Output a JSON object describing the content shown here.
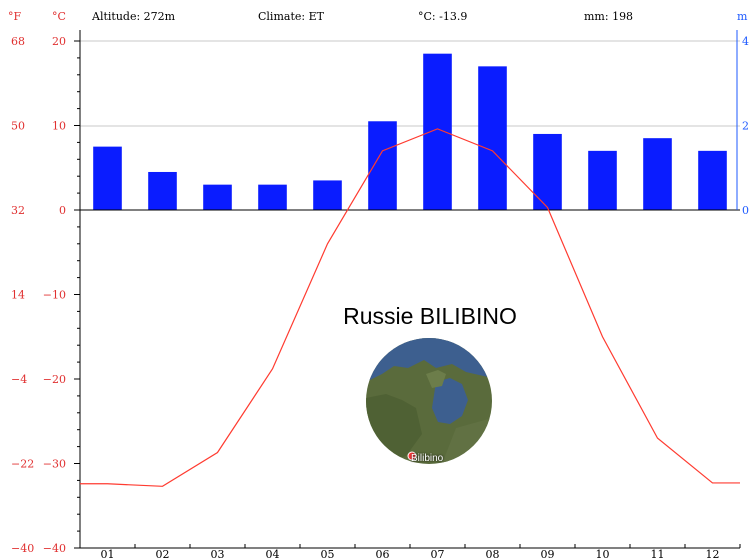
{
  "header": {
    "altitude": "Altitude: 272m",
    "climate": "Climate: ET",
    "avg_temp": "°C: -13.9",
    "precip": "mm: 198"
  },
  "units": {
    "fahrenheit": "°F",
    "celsius": "°C",
    "mm": "m"
  },
  "station": {
    "title": "Russie BILIBINO",
    "map_label": "Bilibino"
  },
  "colors": {
    "precip_bars": "#0a1cff",
    "temperature_line": "#ff3b30",
    "axis_text_temp": "#e03030",
    "axis_text_mm": "#1e5aff"
  },
  "chart_data": {
    "type": "bar",
    "categories": [
      "01",
      "02",
      "03",
      "04",
      "05",
      "06",
      "07",
      "08",
      "09",
      "10",
      "11",
      "12"
    ],
    "series": [
      {
        "name": "mm",
        "axis": "right",
        "values": [
          15,
          9,
          6,
          6,
          7,
          21,
          37,
          34,
          18,
          14,
          17,
          14
        ]
      },
      {
        "name": "°C",
        "axis": "left",
        "type": "line",
        "values": [
          -32.4,
          -32.7,
          -28.7,
          -18.8,
          -4.0,
          7.0,
          9.6,
          7.0,
          0.3,
          -15.0,
          -27.0,
          -32.3
        ]
      }
    ],
    "celsius_ticks": [
      "20",
      "10",
      "0",
      "−10",
      "−20",
      "−30",
      "−40"
    ],
    "fahrenheit_ticks": [
      "68",
      "50",
      "32",
      "14",
      "−4",
      "−22",
      "−40"
    ],
    "mm_ticks": [
      "4",
      "2",
      "0"
    ],
    "ylim_celsius": [
      -40,
      20
    ],
    "ylim_mm": [
      0,
      40
    ],
    "grid": true
  }
}
